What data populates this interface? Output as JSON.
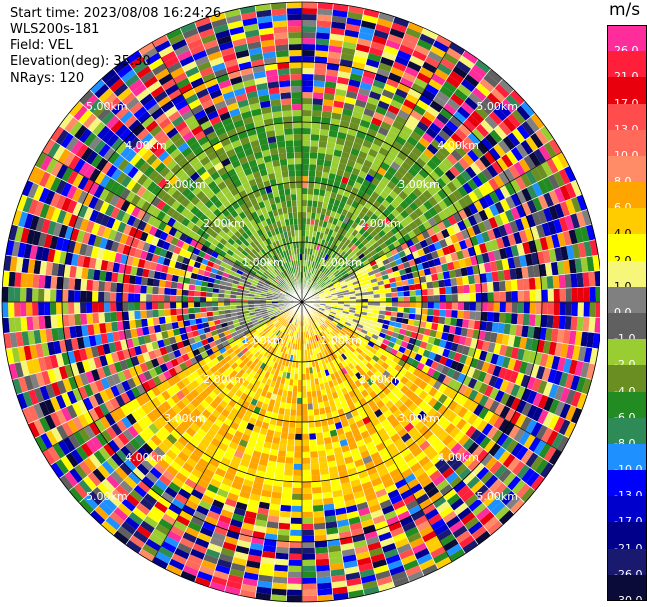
{
  "header": {
    "start_time_label": "Start time:",
    "start_time": "2023/08/08 16:24:26",
    "instrument": "WLS200s-181",
    "field_label": "Field:",
    "field": "VEL",
    "elevation_label": "Elevation(deg):",
    "elevation": "35.30",
    "nrays_label": "NRays:",
    "nrays": "120"
  },
  "colorbar": {
    "unit": "m/s",
    "bins": [
      {
        "label": "26.0",
        "color": "#ff2d9b"
      },
      {
        "label": "21.0",
        "color": "#ff1f3a"
      },
      {
        "label": "17.0",
        "color": "#e8000c"
      },
      {
        "label": "13.0",
        "color": "#ff4d4d"
      },
      {
        "label": "10.0",
        "color": "#ff6a5a"
      },
      {
        "label": "8.0",
        "color": "#ff8c66"
      },
      {
        "label": "6.0",
        "color": "#ffa500"
      },
      {
        "label": "4.0",
        "color": "#ffcc00"
      },
      {
        "label": "2.0",
        "color": "#ffff00"
      },
      {
        "label": "1.0",
        "color": "#f6f67a"
      },
      {
        "label": "0.0",
        "color": "#808080"
      },
      {
        "label": "-1.0",
        "color": "#606060"
      },
      {
        "label": "-2.0",
        "color": "#9acd32"
      },
      {
        "label": "-4.0",
        "color": "#6b8e23"
      },
      {
        "label": "-6.0",
        "color": "#228b22"
      },
      {
        "label": "-8.0",
        "color": "#2e8b57"
      },
      {
        "label": "-10.0",
        "color": "#1e90ff"
      },
      {
        "label": "-13.0",
        "color": "#0000ff"
      },
      {
        "label": "-17.0",
        "color": "#0000cd"
      },
      {
        "label": "-21.0",
        "color": "#00008b"
      },
      {
        "label": "-26.0",
        "color": "#191970"
      },
      {
        "label": "-30.0",
        "color": "#0b0b3a"
      }
    ]
  },
  "chart_data": {
    "type": "heatmap",
    "projection": "polar PPI",
    "field": "VEL",
    "unit": "m/s",
    "nrays": 120,
    "range_rings_km": [
      1,
      2,
      3,
      4,
      5
    ],
    "range_ring_labels": [
      "1.00km",
      "2.00km",
      "3.00km",
      "4.00km",
      "5.00km"
    ],
    "spoke_step_deg": 30,
    "max_range_km": 5,
    "pattern_by_sector": [
      {
        "from_deg": 300,
        "to_deg": 60,
        "near_km": 3.4,
        "near_values": [
          -4,
          -6,
          -2
        ],
        "far": "noisy"
      },
      {
        "from_deg": 60,
        "to_deg": 120,
        "near_km": 1.5,
        "near_values": [
          2,
          1,
          0
        ],
        "far": "noisy"
      },
      {
        "from_deg": 120,
        "to_deg": 240,
        "near_km": 3.6,
        "near_values": [
          6,
          4,
          2
        ],
        "far": "noisy"
      },
      {
        "from_deg": 240,
        "to_deg": 300,
        "near_km": 1.5,
        "near_values": [
          0,
          -1,
          -2
        ],
        "far": "noisy"
      }
    ]
  }
}
